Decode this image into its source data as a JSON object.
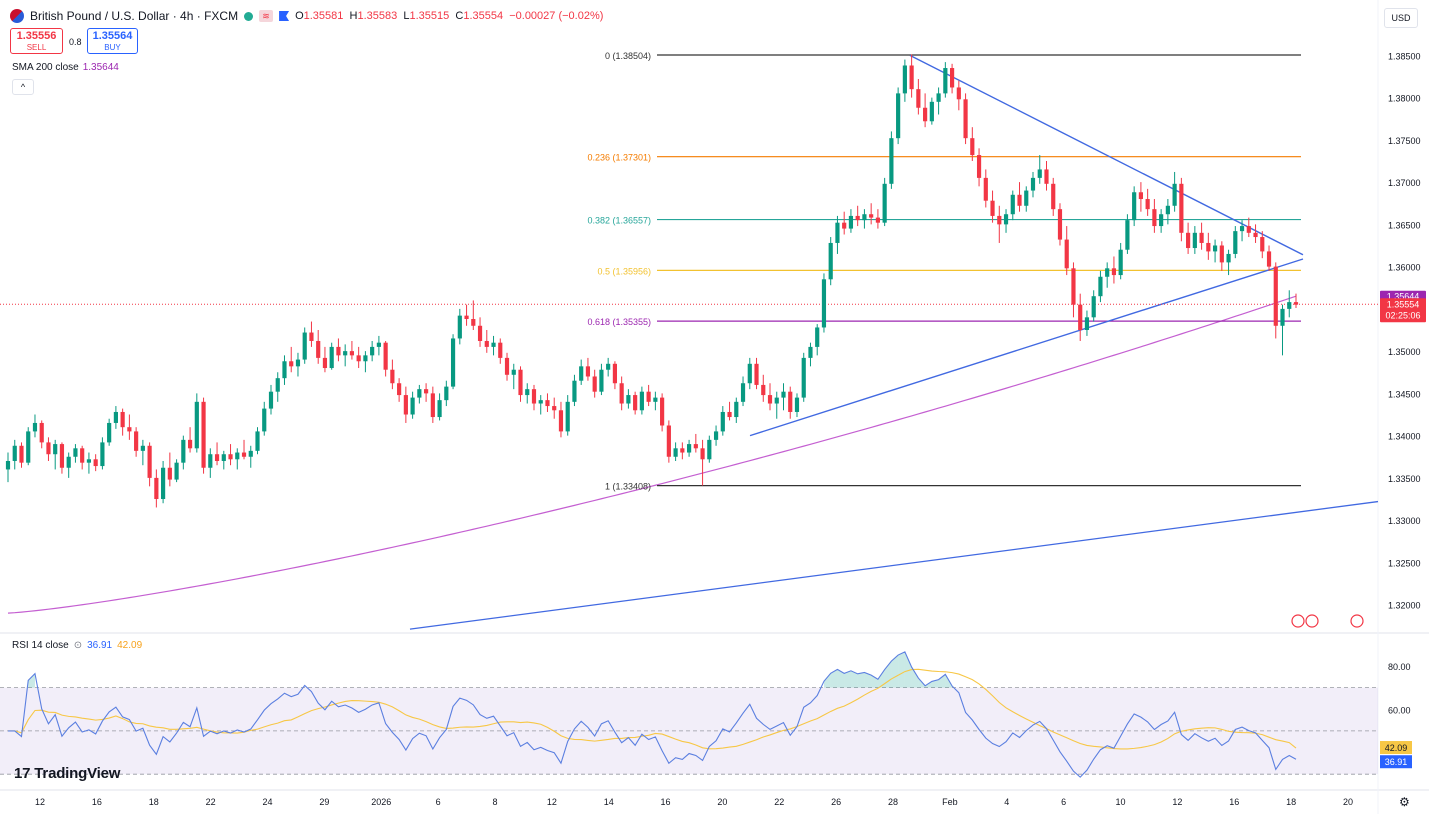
{
  "header": {
    "title": "British Pound / U.S. Dollar · 4h · FXCM",
    "ohlc": [
      {
        "k": "O",
        "v": "1.35581"
      },
      {
        "k": "H",
        "v": "1.35583"
      },
      {
        "k": "L",
        "v": "1.35515"
      },
      {
        "k": "C",
        "v": "1.35554"
      },
      {
        "k": "",
        "v": "−0.00027 (−0.02%)"
      }
    ],
    "sell_price": "1.35556",
    "sell_label": "SELL",
    "spread": "0.8",
    "buy_price": "1.35564",
    "buy_label": "BUY",
    "collapse_icon": "^",
    "currency": "USD"
  },
  "indicators": {
    "sma_label": "SMA 200 close",
    "sma_value": "1.35644",
    "rsi_label": "RSI 14 close",
    "rsi_value": "36.91",
    "rsi_ma_value": "42.09"
  },
  "branding": {
    "logo_text": "TradingView",
    "logo_mark": "17"
  },
  "colors": {
    "up": "#089981",
    "down": "#f23645",
    "sma": "#c45fd1",
    "trend": "#4169e1",
    "fib0": "#333333",
    "fib236": "#f57c00",
    "fib382": "#26a69a",
    "fib5": "#f2c230",
    "fib618": "#9c27b0",
    "rsi": "#5b7fe0",
    "rsi_ma": "#f7c746"
  },
  "chart_data": {
    "type": "candlestick",
    "symbol": "British Pound / U.S. Dollar",
    "interval": "4h",
    "y_range": [
      1.317,
      1.388
    ],
    "y_ticks": [
      1.32,
      1.325,
      1.33,
      1.335,
      1.34,
      1.345,
      1.35,
      1.355,
      1.36,
      1.365,
      1.37,
      1.375,
      1.38,
      1.385
    ],
    "x_ticks": [
      "12",
      "16",
      "18",
      "22",
      "24",
      "29",
      "2026",
      "6",
      "8",
      "12",
      "14",
      "16",
      "20",
      "22",
      "26",
      "28",
      "Feb",
      "4",
      "6",
      "10",
      "12",
      "16",
      "18",
      "20"
    ],
    "fibonacci": [
      {
        "level": "0",
        "price": 1.38504,
        "label": "0 (1.38504)"
      },
      {
        "level": "0.236",
        "price": 1.37301,
        "label": "0.236 (1.37301)"
      },
      {
        "level": "0.382",
        "price": 1.36557,
        "label": "0.382 (1.36557)"
      },
      {
        "level": "0.5",
        "price": 1.35956,
        "label": "0.5 (1.35956)"
      },
      {
        "level": "0.618",
        "price": 1.35355,
        "label": "0.618 (1.35355)"
      },
      {
        "level": "1",
        "price": 1.33408,
        "label": "1 (1.33408)"
      }
    ],
    "last_price": 1.35554,
    "last_price_label": "1.35554",
    "countdown": "02:25:06",
    "sma_200": 1.35644,
    "sma_200_label": "1.35644",
    "candles": [
      [
        1.336,
        1.338,
        1.3345,
        1.337
      ],
      [
        1.337,
        1.3395,
        1.336,
        1.3388
      ],
      [
        1.3388,
        1.3392,
        1.3362,
        1.3368
      ],
      [
        1.3368,
        1.341,
        1.3365,
        1.3405
      ],
      [
        1.3405,
        1.3425,
        1.3398,
        1.3415
      ],
      [
        1.3415,
        1.3418,
        1.3385,
        1.3392
      ],
      [
        1.3392,
        1.3398,
        1.337,
        1.3378
      ],
      [
        1.3378,
        1.3395,
        1.336,
        1.339
      ],
      [
        1.339,
        1.3392,
        1.3355,
        1.3362
      ],
      [
        1.3362,
        1.338,
        1.335,
        1.3375
      ],
      [
        1.3375,
        1.339,
        1.3368,
        1.3385
      ],
      [
        1.3385,
        1.3388,
        1.336,
        1.3368
      ],
      [
        1.3368,
        1.338,
        1.3355,
        1.3372
      ],
      [
        1.3372,
        1.3378,
        1.3358,
        1.3364
      ],
      [
        1.3364,
        1.3398,
        1.336,
        1.3392
      ],
      [
        1.3392,
        1.342,
        1.3388,
        1.3415
      ],
      [
        1.3415,
        1.3435,
        1.3408,
        1.3428
      ],
      [
        1.3428,
        1.3432,
        1.34,
        1.341
      ],
      [
        1.341,
        1.3425,
        1.3395,
        1.3405
      ],
      [
        1.3405,
        1.341,
        1.3375,
        1.3382
      ],
      [
        1.3382,
        1.3395,
        1.3365,
        1.3388
      ],
      [
        1.3388,
        1.3392,
        1.334,
        1.335
      ],
      [
        1.335,
        1.336,
        1.3315,
        1.3325
      ],
      [
        1.3325,
        1.337,
        1.332,
        1.3362
      ],
      [
        1.3362,
        1.338,
        1.334,
        1.3348
      ],
      [
        1.3348,
        1.3372,
        1.3345,
        1.3368
      ],
      [
        1.3368,
        1.34,
        1.336,
        1.3395
      ],
      [
        1.3395,
        1.341,
        1.338,
        1.3385
      ],
      [
        1.3385,
        1.345,
        1.338,
        1.344
      ],
      [
        1.344,
        1.3445,
        1.3355,
        1.3362
      ],
      [
        1.3362,
        1.3385,
        1.335,
        1.3378
      ],
      [
        1.3378,
        1.3392,
        1.3365,
        1.337
      ],
      [
        1.337,
        1.3382,
        1.336,
        1.3378
      ],
      [
        1.3378,
        1.339,
        1.3365,
        1.3372
      ],
      [
        1.3372,
        1.3385,
        1.336,
        1.338
      ],
      [
        1.338,
        1.3395,
        1.3372,
        1.3375
      ],
      [
        1.3375,
        1.3388,
        1.3362,
        1.3382
      ],
      [
        1.3382,
        1.341,
        1.3378,
        1.3405
      ],
      [
        1.3405,
        1.344,
        1.34,
        1.3432
      ],
      [
        1.3432,
        1.346,
        1.3425,
        1.3452
      ],
      [
        1.3452,
        1.3475,
        1.344,
        1.3468
      ],
      [
        1.3468,
        1.3495,
        1.346,
        1.3488
      ],
      [
        1.3488,
        1.3505,
        1.3475,
        1.3482
      ],
      [
        1.3482,
        1.3498,
        1.347,
        1.349
      ],
      [
        1.349,
        1.3528,
        1.3485,
        1.3522
      ],
      [
        1.3522,
        1.3535,
        1.3505,
        1.3512
      ],
      [
        1.3512,
        1.3525,
        1.3485,
        1.3492
      ],
      [
        1.3492,
        1.3505,
        1.3475,
        1.348
      ],
      [
        1.348,
        1.351,
        1.3478,
        1.3505
      ],
      [
        1.3505,
        1.3515,
        1.3488,
        1.3495
      ],
      [
        1.3495,
        1.3508,
        1.3482,
        1.35
      ],
      [
        1.35,
        1.3512,
        1.349,
        1.3495
      ],
      [
        1.3495,
        1.3505,
        1.348,
        1.3488
      ],
      [
        1.3488,
        1.35,
        1.3475,
        1.3495
      ],
      [
        1.3495,
        1.3512,
        1.3488,
        1.3505
      ],
      [
        1.3505,
        1.3518,
        1.3495,
        1.351
      ],
      [
        1.351,
        1.3512,
        1.347,
        1.3478
      ],
      [
        1.3478,
        1.349,
        1.3455,
        1.3462
      ],
      [
        1.3462,
        1.3468,
        1.344,
        1.3448
      ],
      [
        1.3448,
        1.3458,
        1.3415,
        1.3425
      ],
      [
        1.3425,
        1.3452,
        1.342,
        1.3445
      ],
      [
        1.3445,
        1.346,
        1.3438,
        1.3455
      ],
      [
        1.3455,
        1.3462,
        1.344,
        1.345
      ],
      [
        1.345,
        1.3458,
        1.3415,
        1.3422
      ],
      [
        1.3422,
        1.345,
        1.3418,
        1.3442
      ],
      [
        1.3442,
        1.3465,
        1.3435,
        1.3458
      ],
      [
        1.3458,
        1.352,
        1.3455,
        1.3515
      ],
      [
        1.3515,
        1.355,
        1.3508,
        1.3542
      ],
      [
        1.3542,
        1.3555,
        1.353,
        1.3538
      ],
      [
        1.3538,
        1.356,
        1.3525,
        1.353
      ],
      [
        1.353,
        1.354,
        1.3505,
        1.3512
      ],
      [
        1.3512,
        1.3525,
        1.3498,
        1.3505
      ],
      [
        1.3505,
        1.3518,
        1.3495,
        1.351
      ],
      [
        1.351,
        1.3515,
        1.3485,
        1.3492
      ],
      [
        1.3492,
        1.3498,
        1.3465,
        1.3472
      ],
      [
        1.3472,
        1.3485,
        1.3455,
        1.3478
      ],
      [
        1.3478,
        1.3482,
        1.344,
        1.3448
      ],
      [
        1.3448,
        1.3462,
        1.3438,
        1.3455
      ],
      [
        1.3455,
        1.346,
        1.343,
        1.3438
      ],
      [
        1.3438,
        1.3448,
        1.3425,
        1.3442
      ],
      [
        1.3442,
        1.345,
        1.3428,
        1.3435
      ],
      [
        1.3435,
        1.3445,
        1.342,
        1.343
      ],
      [
        1.343,
        1.344,
        1.3398,
        1.3405
      ],
      [
        1.3405,
        1.3448,
        1.34,
        1.344
      ],
      [
        1.344,
        1.3472,
        1.3435,
        1.3465
      ],
      [
        1.3465,
        1.349,
        1.346,
        1.3482
      ],
      [
        1.3482,
        1.3492,
        1.3465,
        1.347
      ],
      [
        1.347,
        1.3478,
        1.3445,
        1.3452
      ],
      [
        1.3452,
        1.3485,
        1.3448,
        1.3478
      ],
      [
        1.3478,
        1.3492,
        1.347,
        1.3485
      ],
      [
        1.3485,
        1.3488,
        1.3455,
        1.3462
      ],
      [
        1.3462,
        1.347,
        1.343,
        1.3438
      ],
      [
        1.3438,
        1.3455,
        1.3432,
        1.3448
      ],
      [
        1.3448,
        1.3452,
        1.3425,
        1.343
      ],
      [
        1.343,
        1.3458,
        1.3425,
        1.3452
      ],
      [
        1.3452,
        1.346,
        1.3435,
        1.344
      ],
      [
        1.344,
        1.3452,
        1.343,
        1.3445
      ],
      [
        1.3445,
        1.345,
        1.3405,
        1.3412
      ],
      [
        1.3412,
        1.3418,
        1.3368,
        1.3375
      ],
      [
        1.3375,
        1.3392,
        1.337,
        1.3385
      ],
      [
        1.3385,
        1.3392,
        1.3372,
        1.338
      ],
      [
        1.338,
        1.3395,
        1.3375,
        1.339
      ],
      [
        1.339,
        1.3402,
        1.338,
        1.3385
      ],
      [
        1.3385,
        1.3395,
        1.3341,
        1.3372
      ],
      [
        1.3372,
        1.34,
        1.3368,
        1.3395
      ],
      [
        1.3395,
        1.3412,
        1.3388,
        1.3405
      ],
      [
        1.3405,
        1.3435,
        1.34,
        1.3428
      ],
      [
        1.3428,
        1.344,
        1.3418,
        1.3422
      ],
      [
        1.3422,
        1.3445,
        1.3415,
        1.344
      ],
      [
        1.344,
        1.347,
        1.3435,
        1.3462
      ],
      [
        1.3462,
        1.3492,
        1.3455,
        1.3485
      ],
      [
        1.3485,
        1.3492,
        1.3455,
        1.346
      ],
      [
        1.346,
        1.3472,
        1.344,
        1.3448
      ],
      [
        1.3448,
        1.3462,
        1.343,
        1.3438
      ],
      [
        1.3438,
        1.3452,
        1.342,
        1.3445
      ],
      [
        1.3445,
        1.3462,
        1.343,
        1.3452
      ],
      [
        1.3452,
        1.3458,
        1.342,
        1.3428
      ],
      [
        1.3428,
        1.345,
        1.3422,
        1.3445
      ],
      [
        1.3445,
        1.3498,
        1.344,
        1.3492
      ],
      [
        1.3492,
        1.351,
        1.3482,
        1.3505
      ],
      [
        1.3505,
        1.3532,
        1.3495,
        1.3528
      ],
      [
        1.3528,
        1.3592,
        1.3522,
        1.3585
      ],
      [
        1.3585,
        1.3635,
        1.3578,
        1.3628
      ],
      [
        1.3628,
        1.366,
        1.3615,
        1.3652
      ],
      [
        1.3652,
        1.3665,
        1.3638,
        1.3645
      ],
      [
        1.3645,
        1.3668,
        1.364,
        1.366
      ],
      [
        1.366,
        1.3672,
        1.3648,
        1.3655
      ],
      [
        1.3655,
        1.3668,
        1.3645,
        1.3662
      ],
      [
        1.3662,
        1.3675,
        1.365,
        1.3658
      ],
      [
        1.3658,
        1.3668,
        1.3645,
        1.3652
      ],
      [
        1.3652,
        1.3705,
        1.3648,
        1.3698
      ],
      [
        1.3698,
        1.376,
        1.3692,
        1.3752
      ],
      [
        1.3752,
        1.3812,
        1.3745,
        1.3805
      ],
      [
        1.3805,
        1.3845,
        1.3795,
        1.3838
      ],
      [
        1.3838,
        1.3851,
        1.38,
        1.381
      ],
      [
        1.381,
        1.3822,
        1.378,
        1.3788
      ],
      [
        1.3788,
        1.3805,
        1.3765,
        1.3772
      ],
      [
        1.3772,
        1.38,
        1.3768,
        1.3795
      ],
      [
        1.3795,
        1.3812,
        1.378,
        1.3805
      ],
      [
        1.3805,
        1.3842,
        1.38,
        1.3835
      ],
      [
        1.3835,
        1.384,
        1.3805,
        1.3812
      ],
      [
        1.3812,
        1.382,
        1.3785,
        1.3798
      ],
      [
        1.3798,
        1.3805,
        1.3745,
        1.3752
      ],
      [
        1.3752,
        1.3765,
        1.3725,
        1.3732
      ],
      [
        1.3732,
        1.374,
        1.3695,
        1.3705
      ],
      [
        1.3705,
        1.3715,
        1.367,
        1.3678
      ],
      [
        1.3678,
        1.369,
        1.3652,
        1.366
      ],
      [
        1.366,
        1.3672,
        1.3628,
        1.365
      ],
      [
        1.365,
        1.3668,
        1.364,
        1.3662
      ],
      [
        1.3662,
        1.369,
        1.3655,
        1.3685
      ],
      [
        1.3685,
        1.37,
        1.3665,
        1.3672
      ],
      [
        1.3672,
        1.3695,
        1.3665,
        1.369
      ],
      [
        1.369,
        1.3712,
        1.3682,
        1.3705
      ],
      [
        1.3705,
        1.3732,
        1.3698,
        1.3715
      ],
      [
        1.3715,
        1.3725,
        1.369,
        1.3698
      ],
      [
        1.3698,
        1.3705,
        1.366,
        1.3668
      ],
      [
        1.3668,
        1.3675,
        1.3625,
        1.3632
      ],
      [
        1.3632,
        1.3648,
        1.359,
        1.3598
      ],
      [
        1.3598,
        1.3605,
        1.354,
        1.3555
      ],
      [
        1.3555,
        1.3568,
        1.3512,
        1.3525
      ],
      [
        1.3525,
        1.3548,
        1.3518,
        1.354
      ],
      [
        1.354,
        1.3572,
        1.3535,
        1.3565
      ],
      [
        1.3565,
        1.3595,
        1.3558,
        1.3588
      ],
      [
        1.3588,
        1.3605,
        1.3575,
        1.3598
      ],
      [
        1.3598,
        1.3612,
        1.358,
        1.359
      ],
      [
        1.359,
        1.3628,
        1.3585,
        1.362
      ],
      [
        1.362,
        1.3662,
        1.3615,
        1.3655
      ],
      [
        1.3655,
        1.3695,
        1.3648,
        1.3688
      ],
      [
        1.3688,
        1.37,
        1.3665,
        1.368
      ],
      [
        1.368,
        1.3692,
        1.366,
        1.3668
      ],
      [
        1.3668,
        1.368,
        1.364,
        1.3648
      ],
      [
        1.3648,
        1.3668,
        1.364,
        1.3662
      ],
      [
        1.3662,
        1.368,
        1.365,
        1.3672
      ],
      [
        1.3672,
        1.3712,
        1.3665,
        1.3698
      ],
      [
        1.3698,
        1.3705,
        1.363,
        1.364
      ],
      [
        1.364,
        1.3652,
        1.3615,
        1.3622
      ],
      [
        1.3622,
        1.3648,
        1.3615,
        1.364
      ],
      [
        1.364,
        1.3652,
        1.362,
        1.3628
      ],
      [
        1.3628,
        1.364,
        1.3608,
        1.3618
      ],
      [
        1.3618,
        1.3632,
        1.3605,
        1.3625
      ],
      [
        1.3625,
        1.363,
        1.3595,
        1.3605
      ],
      [
        1.3605,
        1.362,
        1.359,
        1.3615
      ],
      [
        1.3615,
        1.3648,
        1.361,
        1.3642
      ],
      [
        1.3642,
        1.3655,
        1.363,
        1.3648
      ],
      [
        1.3648,
        1.3658,
        1.3635,
        1.364
      ],
      [
        1.364,
        1.365,
        1.3628,
        1.3635
      ],
      [
        1.3635,
        1.3642,
        1.361,
        1.3618
      ],
      [
        1.3618,
        1.3625,
        1.3595,
        1.36
      ],
      [
        1.36,
        1.3605,
        1.3515,
        1.353
      ],
      [
        1.353,
        1.3555,
        1.3495,
        1.355
      ],
      [
        1.355,
        1.3572,
        1.354,
        1.3558
      ],
      [
        1.3558,
        1.3568,
        1.3551,
        1.3555
      ]
    ],
    "rsi": {
      "label": "RSI 14 close",
      "levels": [
        70,
        50,
        30
      ],
      "y_ticks": [
        60.0,
        80.0
      ],
      "value": 36.91,
      "ma_value": 42.09,
      "value_label": "36.91",
      "ma_label": "42.09",
      "y_range": [
        25,
        92
      ]
    }
  }
}
